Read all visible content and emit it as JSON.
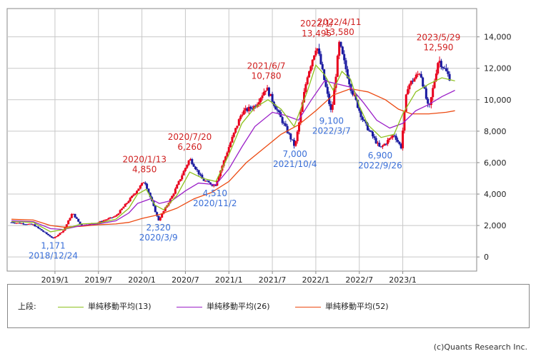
{
  "chart_data": {
    "type": "candlestick",
    "y_ticks": [
      "14,000",
      "12,000",
      "10,000",
      "8,000",
      "6,000",
      "4,000",
      "2,000",
      "0"
    ],
    "y_tick_values": [
      14000,
      12000,
      10000,
      8000,
      6000,
      4000,
      2000,
      0
    ],
    "ylim": [
      -900,
      15800
    ],
    "x_ticks": [
      "2019/1",
      "2019/7",
      "2020/1",
      "2020/7",
      "2021/1",
      "2021/7",
      "2022/1",
      "2022/7",
      "2023/1"
    ],
    "x_tick_values": [
      2019.0,
      2019.5,
      2020.0,
      2020.5,
      2021.0,
      2021.5,
      2022.0,
      2022.5,
      2023.0
    ],
    "xlim": [
      2018.45,
      2023.85
    ],
    "colors": {
      "up": "#e8001c",
      "down": "#1a1aa0",
      "ma13": "#8ec21f",
      "ma26": "#9b1fc8",
      "ma52": "#ec4a12",
      "high_label": "#d01f1f",
      "low_label": "#3a6fd8"
    },
    "annotations": [
      {
        "id": "low-2018",
        "date": "2018/12/24",
        "value": "1,171",
        "kind": "low",
        "x": 2018.98,
        "y": 1171
      },
      {
        "id": "low-2020-03",
        "date": "2020/3/9",
        "value": "2,320",
        "kind": "low",
        "x": 2020.19,
        "y": 2320
      },
      {
        "id": "low-2020-11",
        "date": "2020/11/2",
        "value": "4,510",
        "kind": "low",
        "x": 2020.84,
        "y": 4510
      },
      {
        "id": "low-2021-10",
        "date": "2021/10/4",
        "value": "7,000",
        "kind": "low",
        "x": 2021.76,
        "y": 7000
      },
      {
        "id": "low-2022-03",
        "date": "2022/3/7",
        "value": "9,100",
        "kind": "low",
        "x": 2022.18,
        "y": 9100
      },
      {
        "id": "low-2022-09",
        "date": "2022/9/26",
        "value": "6,900",
        "kind": "low",
        "x": 2022.74,
        "y": 6900
      },
      {
        "id": "high-2020-01",
        "date": "2020/1/13",
        "value": "4,850",
        "kind": "high",
        "x": 2020.03,
        "y": 4850
      },
      {
        "id": "high-2020-07",
        "date": "2020/7/20",
        "value": "6,260",
        "kind": "high",
        "x": 2020.55,
        "y": 6260
      },
      {
        "id": "high-2021-06",
        "date": "2021/6/7",
        "value": "10,780",
        "kind": "high",
        "x": 2021.43,
        "y": 10780
      },
      {
        "id": "high-2022-01",
        "date": "2022/1/",
        "value": "13,495",
        "kind": "high",
        "x": 2022.01,
        "y": 13495
      },
      {
        "id": "high-2022-04",
        "date": "2022/4/11",
        "value": "13,580",
        "kind": "high",
        "x": 2022.27,
        "y": 13580
      },
      {
        "id": "high-2023-05",
        "date": "2023/5/29",
        "value": "12,590",
        "kind": "high",
        "x": 2023.41,
        "y": 12590
      }
    ],
    "ma13": [
      [
        2018.5,
        2250
      ],
      [
        2018.75,
        2200
      ],
      [
        2018.95,
        1600
      ],
      [
        2019.1,
        1750
      ],
      [
        2019.3,
        2100
      ],
      [
        2019.5,
        2150
      ],
      [
        2019.7,
        2400
      ],
      [
        2019.85,
        3100
      ],
      [
        2019.95,
        4000
      ],
      [
        2020.05,
        4300
      ],
      [
        2020.15,
        3300
      ],
      [
        2020.25,
        3000
      ],
      [
        2020.4,
        3900
      ],
      [
        2020.55,
        5400
      ],
      [
        2020.7,
        5000
      ],
      [
        2020.85,
        4800
      ],
      [
        2021.0,
        6500
      ],
      [
        2021.15,
        8500
      ],
      [
        2021.3,
        9500
      ],
      [
        2021.45,
        10000
      ],
      [
        2021.6,
        9400
      ],
      [
        2021.75,
        8300
      ],
      [
        2021.9,
        10500
      ],
      [
        2022.0,
        12200
      ],
      [
        2022.1,
        11600
      ],
      [
        2022.2,
        10600
      ],
      [
        2022.3,
        11800
      ],
      [
        2022.4,
        11300
      ],
      [
        2022.5,
        9600
      ],
      [
        2022.6,
        8400
      ],
      [
        2022.75,
        7600
      ],
      [
        2022.9,
        7800
      ],
      [
        2023.0,
        9100
      ],
      [
        2023.15,
        10500
      ],
      [
        2023.3,
        11000
      ],
      [
        2023.45,
        11400
      ],
      [
        2023.6,
        11200
      ]
    ],
    "ma26": [
      [
        2018.5,
        2300
      ],
      [
        2018.75,
        2250
      ],
      [
        2018.95,
        1800
      ],
      [
        2019.1,
        1750
      ],
      [
        2019.3,
        2000
      ],
      [
        2019.5,
        2100
      ],
      [
        2019.7,
        2300
      ],
      [
        2019.85,
        2800
      ],
      [
        2019.95,
        3400
      ],
      [
        2020.1,
        3700
      ],
      [
        2020.2,
        3400
      ],
      [
        2020.35,
        3600
      ],
      [
        2020.5,
        4200
      ],
      [
        2020.65,
        4700
      ],
      [
        2020.85,
        4600
      ],
      [
        2021.0,
        5600
      ],
      [
        2021.15,
        7000
      ],
      [
        2021.3,
        8300
      ],
      [
        2021.5,
        9200
      ],
      [
        2021.65,
        9000
      ],
      [
        2021.8,
        8700
      ],
      [
        2021.95,
        10000
      ],
      [
        2022.1,
        11200
      ],
      [
        2022.25,
        11000
      ],
      [
        2022.4,
        10800
      ],
      [
        2022.55,
        9800
      ],
      [
        2022.7,
        8700
      ],
      [
        2022.85,
        8200
      ],
      [
        2023.0,
        8500
      ],
      [
        2023.15,
        9300
      ],
      [
        2023.3,
        9700
      ],
      [
        2023.45,
        10200
      ],
      [
        2023.6,
        10600
      ]
    ],
    "ma52": [
      [
        2018.5,
        2400
      ],
      [
        2018.75,
        2350
      ],
      [
        2018.95,
        2000
      ],
      [
        2019.1,
        1900
      ],
      [
        2019.3,
        1950
      ],
      [
        2019.5,
        2050
      ],
      [
        2019.7,
        2100
      ],
      [
        2019.85,
        2200
      ],
      [
        2020.0,
        2450
      ],
      [
        2020.2,
        2700
      ],
      [
        2020.4,
        3100
      ],
      [
        2020.6,
        3700
      ],
      [
        2020.8,
        4100
      ],
      [
        2021.0,
        4800
      ],
      [
        2021.2,
        6000
      ],
      [
        2021.4,
        6900
      ],
      [
        2021.6,
        7800
      ],
      [
        2021.8,
        8400
      ],
      [
        2022.0,
        9300
      ],
      [
        2022.2,
        10300
      ],
      [
        2022.4,
        10700
      ],
      [
        2022.6,
        10500
      ],
      [
        2022.8,
        10000
      ],
      [
        2022.95,
        9400
      ],
      [
        2023.1,
        9100
      ],
      [
        2023.3,
        9100
      ],
      [
        2023.5,
        9200
      ],
      [
        2023.6,
        9300
      ]
    ]
  },
  "legend": {
    "prefix": "上段:",
    "items": [
      {
        "label": "単純移動平均(13)",
        "color": "#8ec21f"
      },
      {
        "label": "単純移動平均(26)",
        "color": "#9b1fc8"
      },
      {
        "label": "単純移動平均(52)",
        "color": "#ec4a12"
      }
    ]
  },
  "credit": "(c)Quants Research Inc."
}
